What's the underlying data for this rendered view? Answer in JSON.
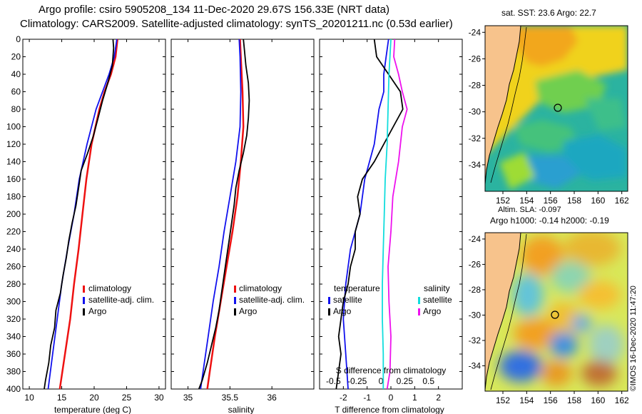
{
  "header": {
    "line1": "Argo profile: csiro 5905208_134 11-Dec-2020 29.67S 156.33E (NRT data)",
    "line2": "Climatology: CARS2009. Satellite-adjusted climatology: synTS_20201211.nc (0.53d earlier)"
  },
  "colors": {
    "climatology": "#ee1111",
    "satellite": "#1111ee",
    "argo": "#000000",
    "sal_satellite": "#11dddd",
    "sal_argo": "#ee11ee"
  },
  "chart_data": [
    {
      "type": "line",
      "id": "temperature",
      "xlabel": "temperature (deg C)",
      "ylabel": "",
      "xlim": [
        9,
        31
      ],
      "ylim": [
        400,
        0
      ],
      "xticks": [
        "10",
        "15",
        "20",
        "25",
        "30"
      ],
      "yticks": [
        "0",
        "20",
        "40",
        "60",
        "80",
        "100",
        "120",
        "140",
        "160",
        "180",
        "200",
        "220",
        "240",
        "260",
        "280",
        "300",
        "320",
        "340",
        "360",
        "380",
        "400"
      ],
      "legend": [
        "climatology",
        "satellite-adj. clim.",
        "Argo"
      ],
      "series": [
        {
          "name": "climatology",
          "color": "climatology",
          "depth": [
            0,
            20,
            40,
            60,
            80,
            120,
            160,
            200,
            240,
            280,
            320,
            360,
            400
          ],
          "values": [
            23.6,
            23.3,
            22.6,
            21.6,
            20.8,
            19.6,
            18.8,
            18.2,
            17.6,
            16.9,
            16.3,
            15.5,
            14.7
          ]
        },
        {
          "name": "satellite-adj. clim.",
          "color": "satellite",
          "depth": [
            0,
            20,
            40,
            60,
            80,
            120,
            160,
            200,
            240,
            280,
            320,
            360,
            400
          ],
          "values": [
            23.5,
            23.1,
            22.3,
            21.3,
            20.3,
            18.9,
            17.7,
            16.9,
            15.9,
            15.0,
            14.3,
            13.6,
            12.9
          ]
        },
        {
          "name": "Argo",
          "color": "argo",
          "depth": [
            0,
            10,
            30,
            50,
            70,
            90,
            110,
            130,
            150,
            170,
            190,
            210,
            230,
            250,
            270,
            290,
            310,
            330,
            350,
            370,
            390,
            400
          ],
          "values": [
            22.9,
            23.0,
            22.8,
            22.1,
            21.3,
            20.6,
            19.9,
            19.0,
            18.0,
            17.6,
            17.2,
            16.6,
            16.1,
            15.7,
            15.2,
            14.8,
            14.1,
            13.9,
            13.3,
            13.0,
            12.5,
            12.3
          ]
        }
      ]
    },
    {
      "type": "line",
      "id": "salinity",
      "xlabel": "salinity",
      "xlim": [
        34.8,
        36.5
      ],
      "ylim": [
        400,
        0
      ],
      "xticks": [
        "35",
        "35.5",
        "36"
      ],
      "legend": [
        "climatology",
        "satellite-adj. clim.",
        "Argo"
      ],
      "series": [
        {
          "name": "climatology",
          "color": "climatology",
          "depth": [
            0,
            20,
            60,
            100,
            140,
            180,
            220,
            260,
            300,
            340,
            380,
            400
          ],
          "values": [
            35.62,
            35.63,
            35.65,
            35.66,
            35.63,
            35.59,
            35.53,
            35.46,
            35.39,
            35.32,
            35.26,
            35.23
          ]
        },
        {
          "name": "satellite-adj. clim.",
          "color": "satellite",
          "depth": [
            0,
            20,
            60,
            100,
            140,
            180,
            220,
            260,
            300,
            340,
            380,
            400
          ],
          "values": [
            35.61,
            35.62,
            35.63,
            35.62,
            35.57,
            35.5,
            35.43,
            35.37,
            35.3,
            35.24,
            35.18,
            35.15
          ]
        },
        {
          "name": "Argo",
          "color": "argo",
          "depth": [
            0,
            10,
            30,
            50,
            70,
            90,
            110,
            130,
            150,
            170,
            190,
            210,
            230,
            250,
            270,
            290,
            310,
            330,
            350,
            370,
            390,
            400
          ],
          "values": [
            35.66,
            35.67,
            35.69,
            35.72,
            35.73,
            35.72,
            35.7,
            35.66,
            35.61,
            35.57,
            35.55,
            35.52,
            35.49,
            35.46,
            35.43,
            35.4,
            35.37,
            35.33,
            35.28,
            35.23,
            35.17,
            35.13
          ]
        }
      ]
    },
    {
      "type": "line",
      "id": "difference",
      "xlabel": "T difference from climatology",
      "xlabel_top": "S difference from climatology",
      "xlim": [
        -3,
        3
      ],
      "ylim": [
        400,
        0
      ],
      "xticks": [
        "-2",
        "-1",
        "0",
        "1",
        "2"
      ],
      "xticks_top": [
        "-0.5",
        "-0.25",
        "0",
        "0.25",
        "0.5"
      ],
      "legend_temperature_title": "temperature",
      "legend_temperature": [
        "satellite",
        "Argo"
      ],
      "legend_salinity_title": "salinity",
      "legend_salinity": [
        "satellite",
        "Argo"
      ],
      "series": [
        {
          "name": "temperature satellite",
          "color": "satellite",
          "depth": [
            0,
            20,
            40,
            60,
            80,
            120,
            160,
            200,
            240,
            280,
            320,
            360,
            400
          ],
          "values": [
            -0.1,
            -0.2,
            -0.3,
            -0.3,
            -0.5,
            -0.7,
            -1.1,
            -1.3,
            -1.7,
            -1.9,
            -2.0,
            -1.9,
            -1.8
          ]
        },
        {
          "name": "temperature Argo",
          "color": "argo",
          "depth": [
            0,
            20,
            40,
            60,
            80,
            100,
            120,
            140,
            160,
            180,
            200,
            220,
            240,
            260,
            280,
            300,
            320,
            340,
            360,
            380,
            400
          ],
          "values": [
            -0.7,
            -0.6,
            -0.1,
            0.4,
            0.5,
            0.1,
            -0.3,
            -0.7,
            -1.2,
            -1.4,
            -1.3,
            -1.5,
            -1.5,
            -1.7,
            -1.8,
            -2.0,
            -2.1,
            -2.2,
            -2.1,
            -2.2,
            -2.3
          ]
        },
        {
          "name": "salinity satellite",
          "color": "sal_satellite",
          "depth": [
            0,
            40,
            80,
            120,
            160,
            200,
            240,
            280,
            320,
            360,
            400
          ],
          "values": [
            0.0,
            -0.02,
            -0.03,
            -0.04,
            -0.06,
            -0.07,
            -0.08,
            -0.09,
            -0.09,
            -0.08,
            -0.08
          ]
        },
        {
          "name": "salinity Argo",
          "color": "sal_argo",
          "depth": [
            0,
            20,
            40,
            60,
            80,
            100,
            140,
            180,
            220,
            260,
            300,
            340,
            380,
            400
          ],
          "values": [
            0.04,
            0.03,
            0.08,
            0.12,
            0.17,
            0.12,
            0.08,
            0.02,
            0.0,
            -0.03,
            -0.02,
            0.0,
            -0.01,
            -0.04
          ]
        }
      ]
    },
    {
      "type": "heatmap",
      "id": "sst_map",
      "title": "sat. SST: 23.6 Argo: 22.7",
      "xticks": [
        "152",
        "154",
        "156",
        "158",
        "160",
        "162"
      ],
      "yticks": [
        "-24",
        "-26",
        "-28",
        "-30",
        "-32",
        "-34"
      ],
      "xlim": [
        150.5,
        162.5
      ],
      "ylim": [
        -36,
        -23.5
      ]
    },
    {
      "type": "heatmap",
      "id": "sla_map",
      "title_line1": "Altim. SLA: -0.097",
      "title_line2": "Argo h1000: -0.14 h2000: -0.19",
      "xticks": [
        "152",
        "154",
        "156",
        "158",
        "160",
        "162"
      ],
      "yticks": [
        "-24",
        "-26",
        "-28",
        "-30",
        "-32",
        "-34"
      ],
      "xlim": [
        150.5,
        162.5
      ],
      "ylim": [
        -36,
        -23.5
      ]
    }
  ],
  "footer": {
    "credit": "©IMOS 16-Dec-2020 11:47:20"
  }
}
